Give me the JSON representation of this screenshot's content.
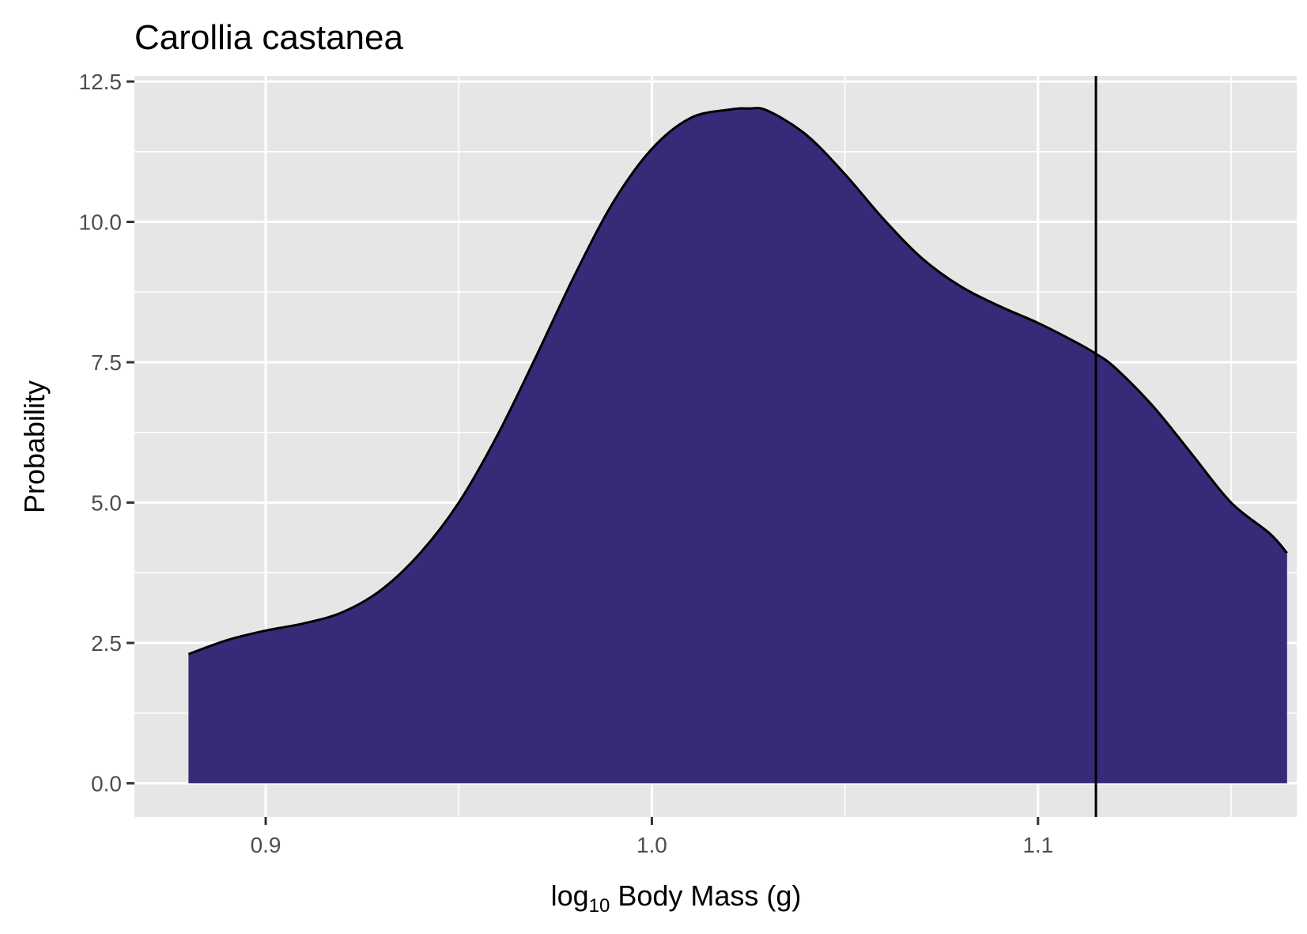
{
  "chart_data": {
    "type": "area",
    "title": "Carollia castanea",
    "xlabel": {
      "base": "log",
      "subscript": "10",
      "rest": " Body Mass (g)"
    },
    "ylabel": "Probability",
    "x_range": [
      0.866,
      1.167
    ],
    "ylim": [
      -0.6,
      12.6
    ],
    "x_ticks": [
      0.9,
      1.0,
      1.1
    ],
    "x_tick_labels": [
      "0.9",
      "1.0",
      "1.1"
    ],
    "y_ticks": [
      0.0,
      2.5,
      5.0,
      7.5,
      10.0,
      12.5
    ],
    "y_tick_labels": [
      "0.0",
      "2.5",
      "5.0",
      "7.5",
      "10.0",
      "12.5"
    ],
    "grid": true,
    "fill_color": "#382a78",
    "line_color": "#000000",
    "panel_color": "#e6e6e6",
    "vline_x": 1.115,
    "density": {
      "x": [
        0.88,
        0.89,
        0.9,
        0.91,
        0.92,
        0.93,
        0.94,
        0.95,
        0.96,
        0.97,
        0.98,
        0.99,
        1.0,
        1.01,
        1.02,
        1.025,
        1.03,
        1.04,
        1.05,
        1.06,
        1.07,
        1.08,
        1.09,
        1.1,
        1.11,
        1.115,
        1.12,
        1.13,
        1.14,
        1.15,
        1.16,
        1.1645
      ],
      "y": [
        2.3,
        2.55,
        2.72,
        2.85,
        3.05,
        3.45,
        4.1,
        5.0,
        6.2,
        7.6,
        9.05,
        10.35,
        11.3,
        11.85,
        12.0,
        12.02,
        11.98,
        11.55,
        10.85,
        10.05,
        9.35,
        8.85,
        8.5,
        8.2,
        7.85,
        7.65,
        7.4,
        6.7,
        5.85,
        5.0,
        4.45,
        4.1
      ]
    }
  }
}
